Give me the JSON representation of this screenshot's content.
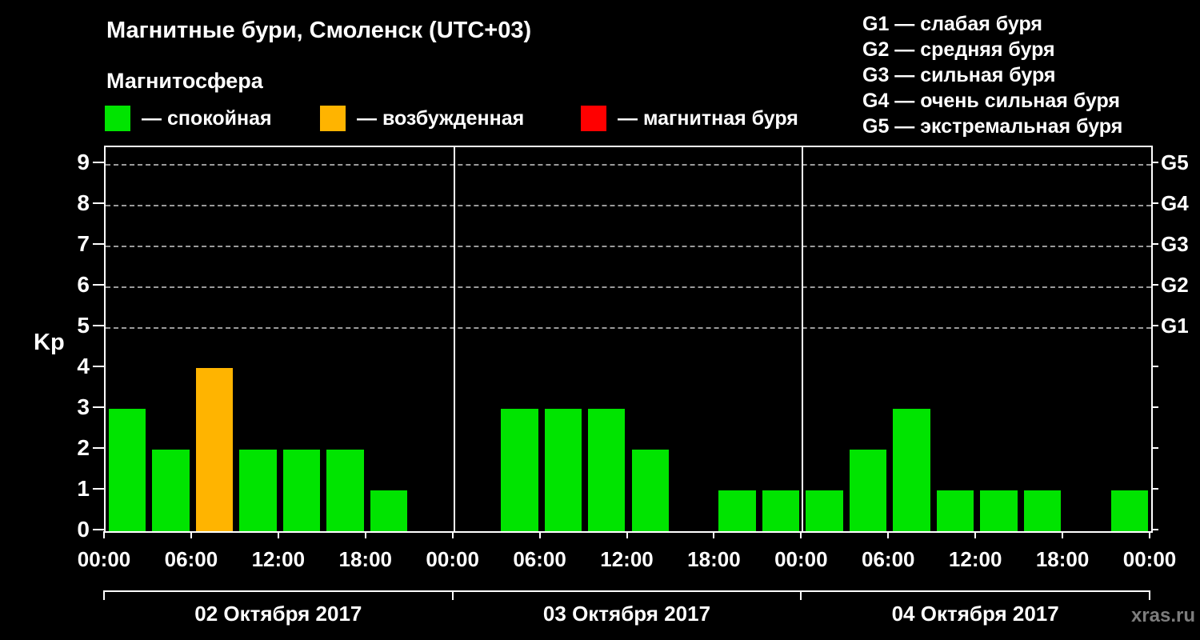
{
  "title": "Магнитные бури, Смоленск (UTC+03)",
  "subtitle": "Магнитосфера",
  "state_legend": [
    {
      "state": "quiet",
      "label": "— спокойная",
      "color": "#00e400"
    },
    {
      "state": "excited",
      "label": "— возбужденная",
      "color": "#ffb400"
    },
    {
      "state": "storm",
      "label": "— магнитная буря",
      "color": "#ff0000"
    }
  ],
  "storm_scale_legend": [
    "G1 — слабая буря",
    "G2 — средняя буря",
    "G3 — сильная буря",
    "G4 — очень сильная буря",
    "G5 — экстремальная буря"
  ],
  "watermark": "xras.ru",
  "chart_data": {
    "type": "bar",
    "title": "Магнитные бури, Смоленск (UTC+03)",
    "ylabel": "Kp",
    "ylim": [
      0,
      9.4
    ],
    "yticks": [
      0,
      1,
      2,
      3,
      4,
      5,
      6,
      7,
      8,
      9
    ],
    "gridlines": [
      5,
      6,
      7,
      8,
      9
    ],
    "right_axis_labels": [
      {
        "label": "G5",
        "value": 9
      },
      {
        "label": "G4",
        "value": 8
      },
      {
        "label": "G3",
        "value": 7
      },
      {
        "label": "G2",
        "value": 6
      },
      {
        "label": "G1",
        "value": 5
      }
    ],
    "hour_ticks": [
      "00:00",
      "06:00",
      "12:00",
      "18:00"
    ],
    "final_hour_tick": "00:00",
    "interval_hours": 3,
    "days": [
      {
        "date": "02 Октября 2017",
        "values": [
          3,
          2,
          4,
          2,
          2,
          2,
          1,
          0
        ]
      },
      {
        "date": "03 Октября 2017",
        "values": [
          0,
          3,
          3,
          3,
          2,
          0,
          1,
          1
        ]
      },
      {
        "date": "04 Октября 2017",
        "values": [
          1,
          2,
          3,
          1,
          1,
          1,
          0,
          1
        ]
      }
    ],
    "color_rules": {
      "excited_min_kp": 4,
      "storm_min_kp": 5
    },
    "colors": {
      "quiet": "#00e400",
      "excited": "#ffb400",
      "storm": "#ff0000"
    },
    "grid": true,
    "legend_position": "top"
  }
}
